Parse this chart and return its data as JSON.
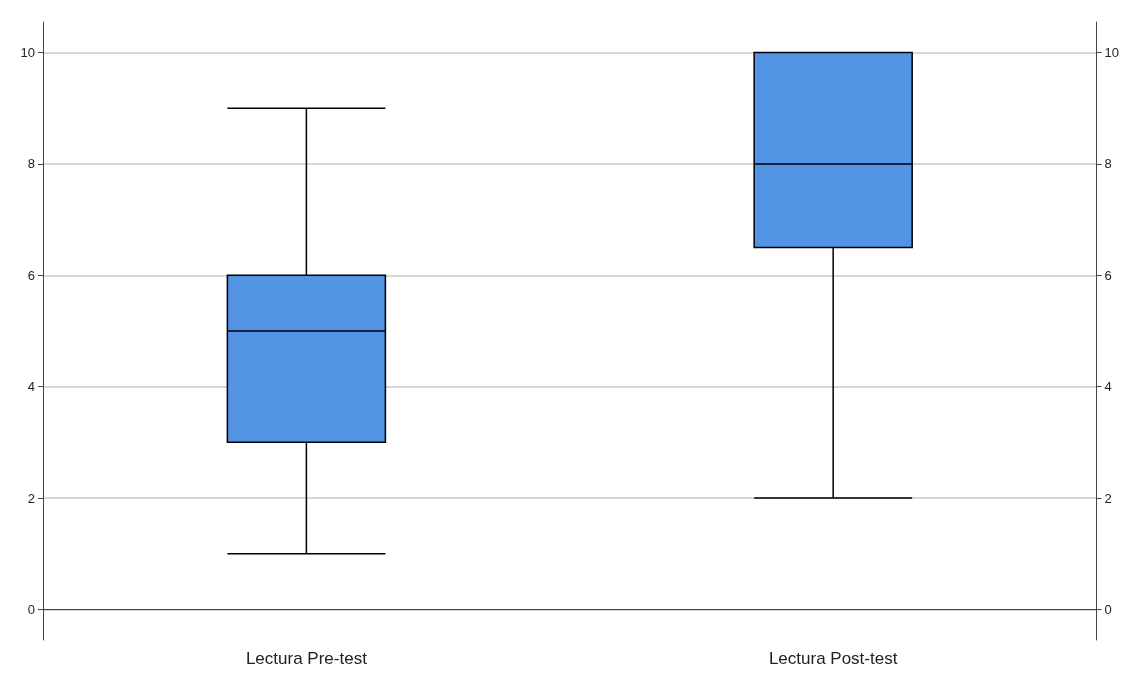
{
  "chart_data": {
    "type": "box",
    "categories": [
      "Lectura Pre-test",
      "Lectura Post-test"
    ],
    "boxes": [
      {
        "low": 1,
        "q1": 3,
        "median": 5,
        "q3": 6,
        "high": 9
      },
      {
        "low": 2,
        "q1": 6.5,
        "median": 8,
        "q3": 10,
        "high": 10
      }
    ],
    "color": "#5394e4",
    "ylim": [
      -0.55,
      10.55
    ],
    "yticks": [
      0,
      2,
      4,
      6,
      8,
      10
    ],
    "y2lim": [
      -0.55,
      10.55
    ],
    "y2ticks": [
      0,
      2,
      4,
      6,
      8,
      10
    ],
    "grid": "y"
  }
}
